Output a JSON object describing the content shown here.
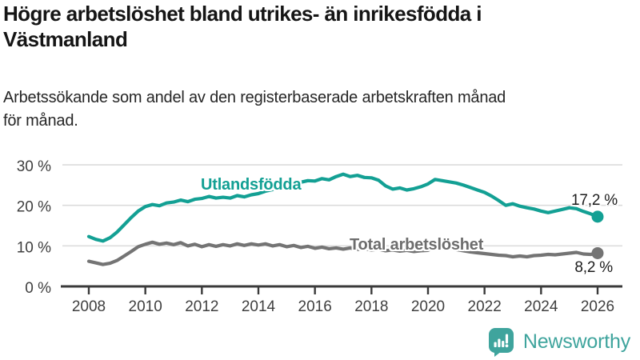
{
  "header": {
    "title": "Högre arbetslöshet bland utrikes- än inrikesfödda i Västmanland",
    "title_lines": [
      "Högre arbetslöshet bland utrikes- än inrikesfödda i",
      "Västmanland"
    ],
    "subtitle": "Arbetssökande som andel av den registerbaserade arbetskraften månad för månad.",
    "subtitle_lines": [
      "Arbetssökande som andel av den registerbaserade arbetskraften månad",
      "för månad."
    ]
  },
  "footer": {
    "brand": "Newsworthy",
    "brand_color": "#3fa49d"
  },
  "colors": {
    "series_foreign_born": "#13a094",
    "series_total": "#747474",
    "gridline": "#dcdcdc",
    "axis": "#3a3a3a",
    "axis_text": "#3f3f3f"
  },
  "chart_data": {
    "type": "line",
    "title": "Högre arbetslöshet bland utrikes- än inrikesfödda i Västmanland",
    "xlabel": "",
    "ylabel": "",
    "grid": true,
    "legend_position": "inline-labels",
    "x_start": 2008.0,
    "x_step": 0.25,
    "xlim": [
      2007.1,
      2026.9
    ],
    "ylim": [
      0,
      32
    ],
    "y_ticks": [
      {
        "v": 0,
        "label": "0 %"
      },
      {
        "v": 10,
        "label": "10 %"
      },
      {
        "v": 20,
        "label": "20 %"
      },
      {
        "v": 30,
        "label": "30 %"
      }
    ],
    "x_ticks": [
      {
        "v": 2008,
        "label": "2008"
      },
      {
        "v": 2010,
        "label": "2010"
      },
      {
        "v": 2012,
        "label": "2012"
      },
      {
        "v": 2014,
        "label": "2014"
      },
      {
        "v": 2016,
        "label": "2016"
      },
      {
        "v": 2018,
        "label": "2018"
      },
      {
        "v": 2020,
        "label": "2020"
      },
      {
        "v": 2022,
        "label": "2022"
      },
      {
        "v": 2024,
        "label": "2024"
      },
      {
        "v": 2026,
        "label": "2026"
      }
    ],
    "series": [
      {
        "name": "Utlandsfödda",
        "color": "#13a094",
        "end_value": 17.2,
        "end_label": "17,2 %",
        "values": [
          12.3,
          11.6,
          11.2,
          12.0,
          13.4,
          15.2,
          17.0,
          18.6,
          19.7,
          20.2,
          19.9,
          20.6,
          20.8,
          21.3,
          20.9,
          21.5,
          21.7,
          22.2,
          21.8,
          22.0,
          21.8,
          22.4,
          22.1,
          22.6,
          22.9,
          23.5,
          23.9,
          24.5,
          24.9,
          25.4,
          25.7,
          26.1,
          26.0,
          26.6,
          26.3,
          27.1,
          27.7,
          27.1,
          27.4,
          26.9,
          26.8,
          26.2,
          24.8,
          24.0,
          24.3,
          23.8,
          24.1,
          24.6,
          25.3,
          26.4,
          26.1,
          25.8,
          25.5,
          25.0,
          24.4,
          23.8,
          23.2,
          22.3,
          21.2,
          20.0,
          20.4,
          19.8,
          19.4,
          19.1,
          18.6,
          18.2,
          18.6,
          19.0,
          19.4,
          19.2,
          18.5,
          17.9,
          17.2
        ]
      },
      {
        "name": "Total arbetslöshet",
        "color": "#747474",
        "end_value": 8.2,
        "end_label": "8,2 %",
        "values": [
          6.2,
          5.8,
          5.4,
          5.7,
          6.4,
          7.5,
          8.6,
          9.8,
          10.4,
          10.9,
          10.4,
          10.7,
          10.3,
          10.8,
          10.0,
          10.4,
          9.8,
          10.3,
          9.9,
          10.3,
          10.0,
          10.5,
          10.1,
          10.5,
          10.2,
          10.5,
          10.0,
          10.3,
          9.8,
          10.1,
          9.6,
          9.9,
          9.4,
          9.7,
          9.3,
          9.5,
          9.2,
          9.5,
          9.1,
          9.3,
          9.0,
          9.2,
          8.8,
          9.0,
          8.7,
          8.9,
          8.6,
          8.8,
          8.9,
          9.7,
          9.5,
          9.4,
          9.1,
          8.8,
          8.5,
          8.3,
          8.1,
          7.9,
          7.7,
          7.6,
          7.3,
          7.5,
          7.3,
          7.6,
          7.7,
          7.9,
          7.8,
          8.0,
          8.2,
          8.4,
          8.0,
          7.9,
          8.2
        ]
      }
    ]
  }
}
